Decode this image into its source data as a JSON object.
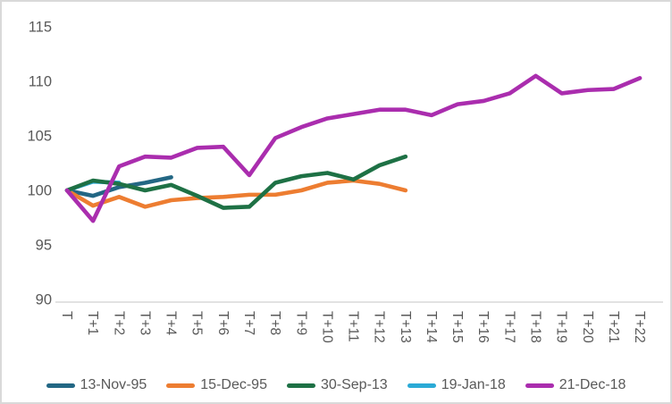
{
  "chart_data": {
    "type": "line",
    "title": "",
    "xlabel": "",
    "ylabel": "",
    "categories": [
      "T",
      "T+1",
      "T+2",
      "T+3",
      "T+4",
      "T+5",
      "T+6",
      "T+7",
      "T+8",
      "T+9",
      "T+10",
      "T+11",
      "T+12",
      "T+13",
      "T+14",
      "T+15",
      "T+16",
      "T+17",
      "T+18",
      "T+19",
      "T+20",
      "T+21",
      "T+22"
    ],
    "y_ticks": [
      90,
      95,
      100,
      105,
      110,
      115
    ],
    "ylim": [
      90,
      115
    ],
    "grid": false,
    "legend_position": "bottom",
    "series": [
      {
        "name": "13-Nov-95",
        "color": "#236784",
        "values": [
          100,
          99.5,
          100.3,
          100.7,
          101.2
        ]
      },
      {
        "name": "15-Dec-95",
        "color": "#ED7D31",
        "values": [
          100,
          98.6,
          99.4,
          98.5,
          99.1,
          99.3,
          99.4,
          99.6,
          99.6,
          100.0,
          100.7,
          100.9,
          100.6,
          100.0
        ]
      },
      {
        "name": "30-Sep-13",
        "color": "#1E7145",
        "values": [
          100,
          100.9,
          100.6,
          100.0,
          100.5,
          99.5,
          98.4,
          98.5,
          100.7,
          101.3,
          101.6,
          101.0,
          102.3,
          103.1
        ]
      },
      {
        "name": "19-Jan-18",
        "color": "#2BAAD6",
        "values": [
          100,
          100.8,
          100.7
        ]
      },
      {
        "name": "21-Dec-18",
        "color": "#AA2DAE",
        "values": [
          100,
          97.2,
          102.2,
          103.1,
          103.0,
          103.9,
          104.0,
          101.4,
          104.8,
          105.8,
          106.6,
          107.0,
          107.4,
          107.4,
          106.9,
          107.9,
          108.2,
          108.9,
          110.5,
          108.9,
          109.2,
          109.3,
          110.3
        ]
      }
    ],
    "axis_text_color": "#595959",
    "axis_line_color": "#d9d9d9"
  }
}
